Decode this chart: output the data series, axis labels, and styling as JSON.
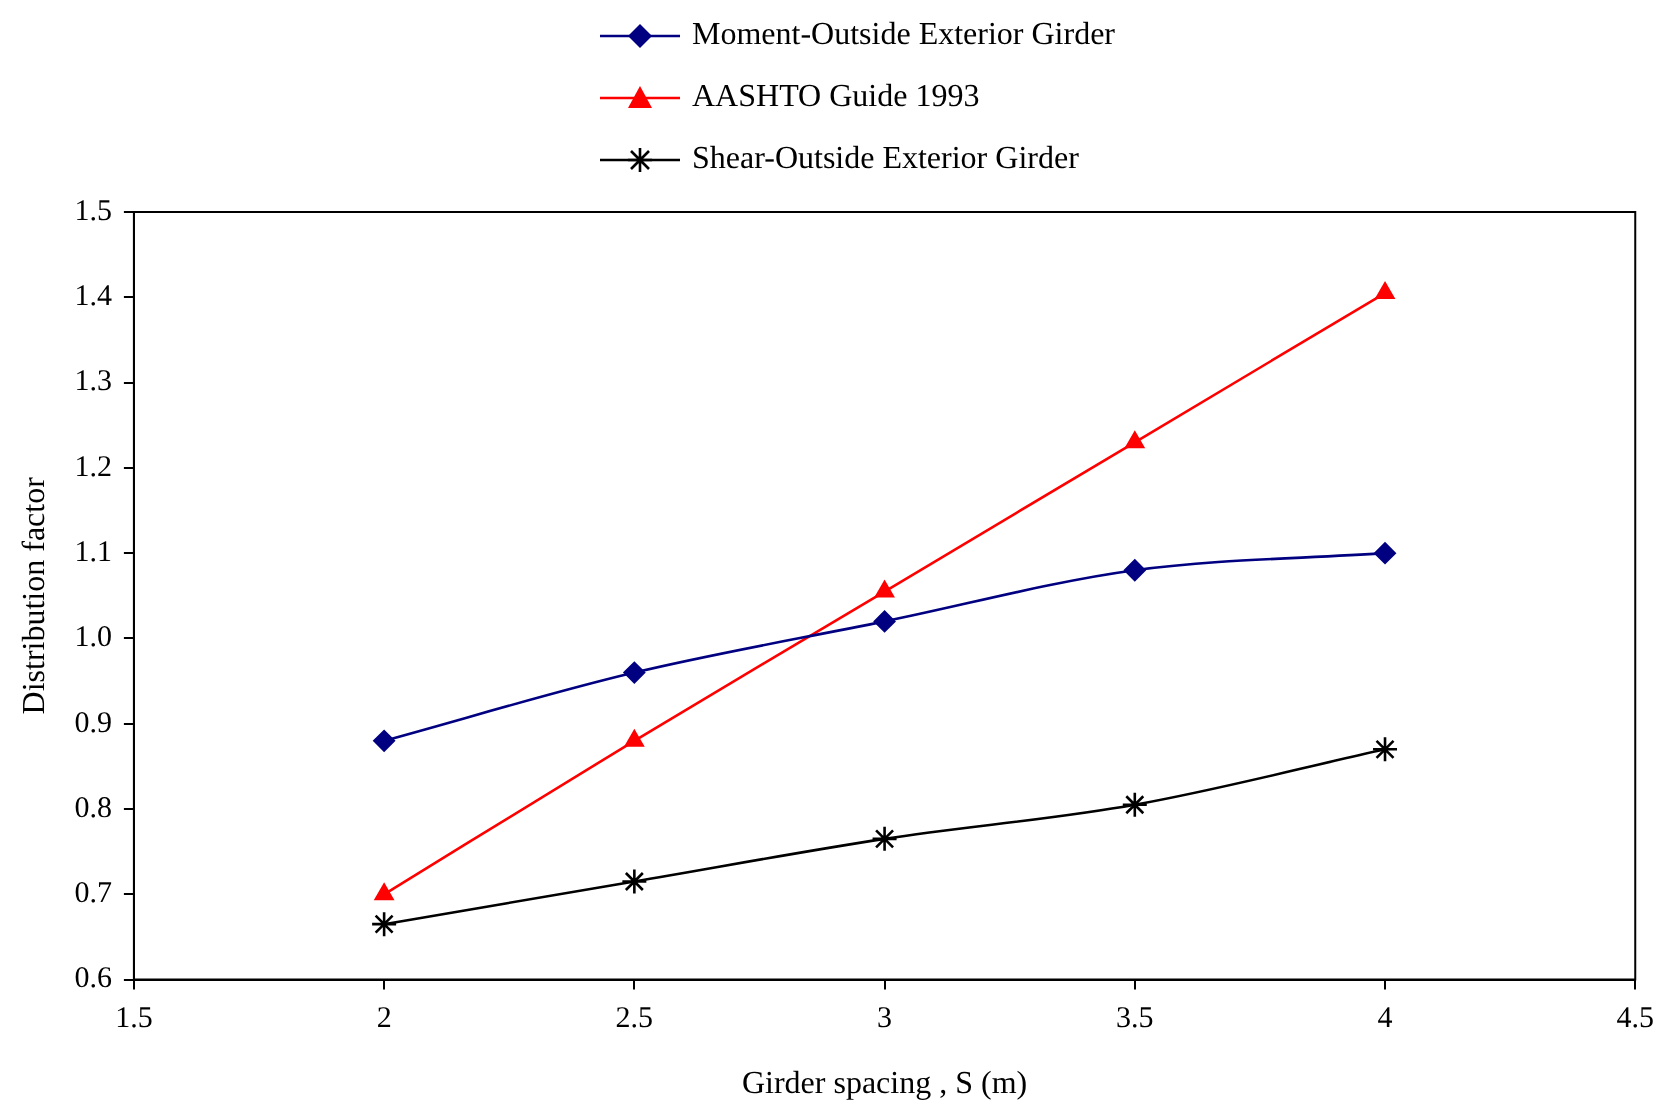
{
  "chart_data": {
    "type": "line",
    "xlabel": "Girder spacing , S (m)",
    "ylabel": "Distribution factor",
    "xlim": [
      1.5,
      4.5
    ],
    "xticks": [
      1.5,
      2,
      2.5,
      3,
      3.5,
      4,
      4.5
    ],
    "ylim": [
      0.6,
      1.5
    ],
    "yticks": [
      0.6,
      0.7,
      0.8,
      0.9,
      {
        "value": 1,
        "label": "1.0"
      },
      1.1,
      1.2,
      1.3,
      1.4,
      1.5
    ],
    "x": [
      2,
      2.5,
      3,
      3.5,
      4
    ],
    "grid": false,
    "legend": "top",
    "series": [
      {
        "name": "Moment-Outside Exterior Girder",
        "color": "#000080",
        "marker": "diamond",
        "values": [
          0.88,
          0.96,
          1.02,
          1.08,
          1.1
        ]
      },
      {
        "name": "AASHTO Guide 1993",
        "color": "#ff0000",
        "marker": "triangle",
        "values": [
          0.7,
          0.88,
          1.055,
          1.23,
          1.405
        ]
      },
      {
        "name": "Shear-Outside Exterior Girder",
        "color": "#000000",
        "marker": "cross",
        "values": [
          0.665,
          0.715,
          0.765,
          0.805,
          0.87
        ]
      }
    ]
  }
}
